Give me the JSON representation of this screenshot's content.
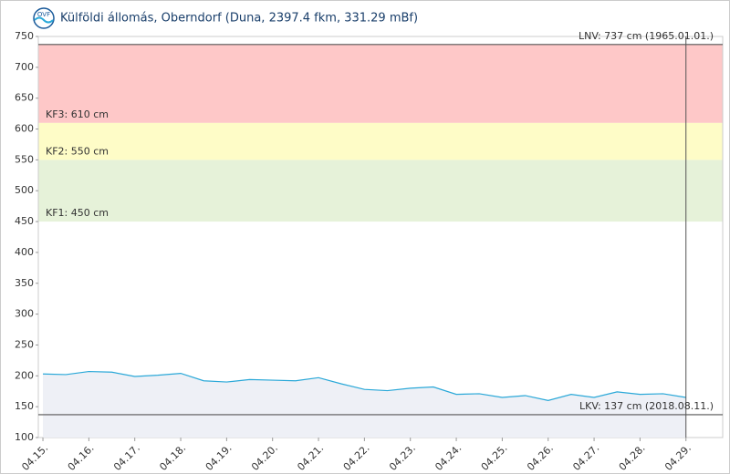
{
  "chart_data": {
    "type": "area",
    "title": "Külföldi állomás, Oberndorf (Duna, 2397.4 fkm, 331.29 mBf)",
    "xlim": [
      -0.1,
      14.8
    ],
    "xticks": [
      {
        "value": 0,
        "label": "04.15."
      },
      {
        "value": 1,
        "label": "04.16."
      },
      {
        "value": 2,
        "label": "04.17."
      },
      {
        "value": 3,
        "label": "04.18."
      },
      {
        "value": 4,
        "label": "04.19."
      },
      {
        "value": 5,
        "label": "04.20."
      },
      {
        "value": 6,
        "label": "04.21."
      },
      {
        "value": 7,
        "label": "04.22."
      },
      {
        "value": 8,
        "label": "04.23."
      },
      {
        "value": 9,
        "label": "04.24."
      },
      {
        "value": 10,
        "label": "04.25."
      },
      {
        "value": 11,
        "label": "04.26."
      },
      {
        "value": 12,
        "label": "04.27."
      },
      {
        "value": 13,
        "label": "04.28."
      },
      {
        "value": 14,
        "label": "04.29."
      }
    ],
    "ylim": [
      100,
      750
    ],
    "yticks": [
      100,
      150,
      200,
      250,
      300,
      350,
      400,
      450,
      500,
      550,
      600,
      650,
      700,
      750
    ],
    "bands": [
      {
        "label": "KF1: 450 cm",
        "from": 450,
        "to": 550,
        "color": "#e6f2d9"
      },
      {
        "label": "KF2: 550 cm",
        "from": 550,
        "to": 610,
        "color": "#fefcc7"
      },
      {
        "label": "KF3: 610 cm",
        "from": 610,
        "to": 737,
        "color": "#fec8c8"
      }
    ],
    "reference_lines": [
      {
        "label": "LNV: 737 cm (1965.01.01.)",
        "value": 737
      },
      {
        "label": "LKV: 137 cm (2018.08.11.)",
        "value": 137
      }
    ],
    "series": [
      {
        "color": "#2aa8d8",
        "x": [
          0,
          0.5,
          1,
          1.5,
          2,
          2.5,
          3,
          3.5,
          4,
          4.5,
          5,
          5.5,
          6,
          6.5,
          7,
          7.5,
          8,
          8.5,
          9,
          9.5,
          10,
          10.5,
          11,
          11.5,
          12,
          12.5,
          13,
          13.5,
          14
        ],
        "values": [
          203,
          202,
          207,
          206,
          199,
          201,
          204,
          192,
          190,
          194,
          193,
          192,
          197,
          187,
          178,
          176,
          180,
          182,
          170,
          171,
          165,
          168,
          160,
          170,
          165,
          174,
          170,
          171,
          165
        ]
      }
    ]
  }
}
